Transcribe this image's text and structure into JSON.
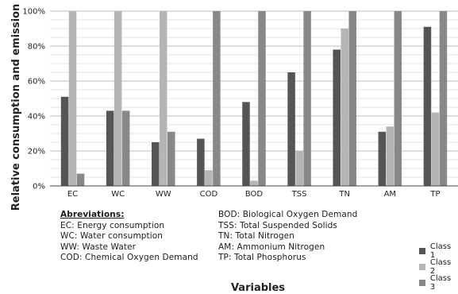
{
  "chart_data": {
    "type": "bar",
    "categories": [
      "EC",
      "WC",
      "WW",
      "COD",
      "BOD",
      "TSS",
      "TN",
      "AM",
      "TP"
    ],
    "series": [
      {
        "name": "Class 1",
        "color": "#555555",
        "values": [
          51,
          43,
          25,
          27,
          48,
          65,
          78,
          31,
          91
        ]
      },
      {
        "name": "Class 2",
        "color": "#b5b5b5",
        "values": [
          100,
          100,
          100,
          9,
          3,
          20,
          90,
          34,
          42
        ]
      },
      {
        "name": "Class 3",
        "color": "#888888",
        "values": [
          7,
          43,
          31,
          100,
          100,
          100,
          100,
          100,
          100
        ]
      }
    ],
    "ylim": [
      0,
      100
    ],
    "yticks": [
      "0%",
      "20%",
      "40%",
      "60%",
      "80%",
      "100%"
    ],
    "ylabel": "Relative consumption and emission",
    "xlabel": "Variables",
    "grid": true,
    "legend_position": "bottom-right"
  },
  "abbreviations": {
    "title": "Abreviations:",
    "left": [
      "EC: Energy consumption",
      "WC: Water consumption",
      "WW: Waste Water",
      "COD: Chemical Oxygen Demand"
    ],
    "right": [
      "BOD: Biological Oxygen Demand",
      "TSS: Total Suspended Solids",
      "TN: Total Nitrogen",
      "AM: Ammonium Nitrogen",
      "TP: Total Phosphorus"
    ]
  }
}
